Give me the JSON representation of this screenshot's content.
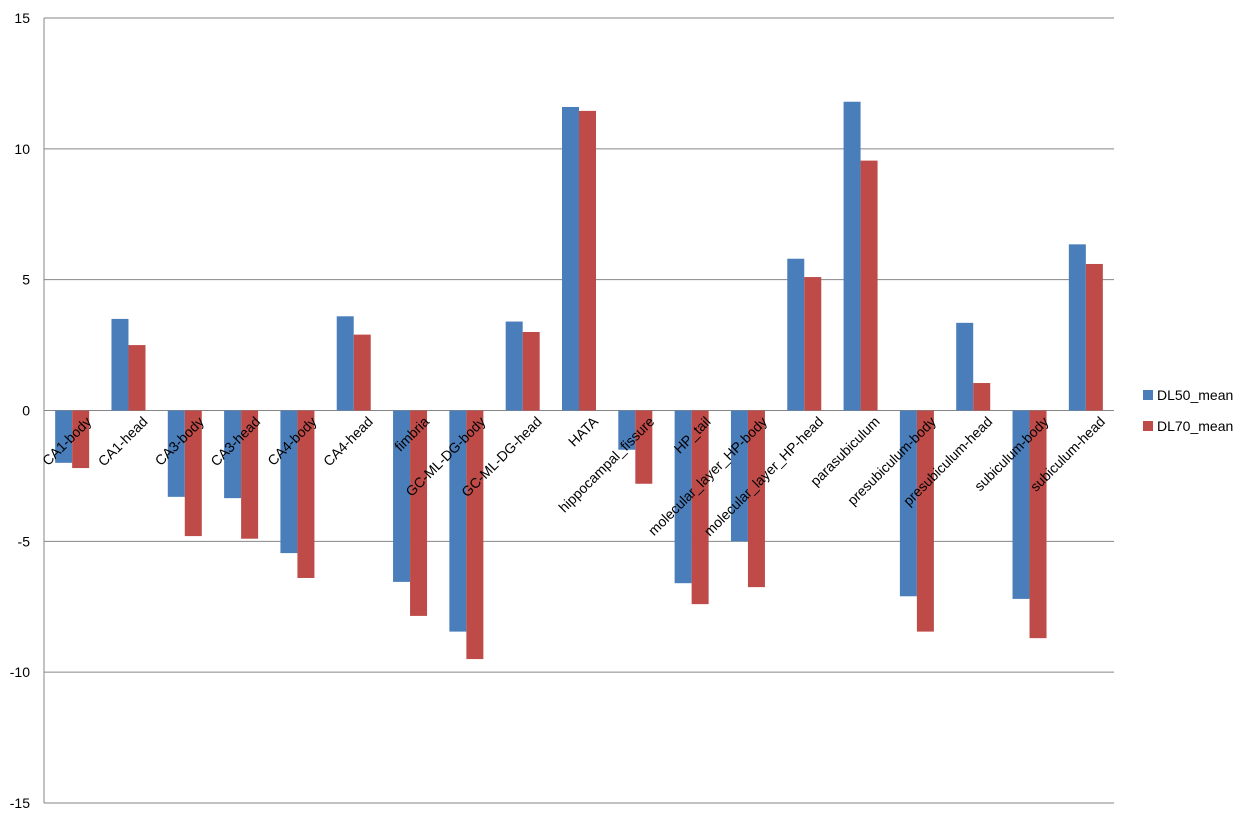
{
  "chart_data": {
    "type": "bar",
    "categories": [
      "CA1-body",
      "CA1-head",
      "CA3-body",
      "CA3-head",
      "CA4-body",
      "CA4-head",
      "fimbria",
      "GC-ML-DG-body",
      "GC-ML-DG-head",
      "HATA",
      "hippocampal_fissure",
      "HP_tail",
      "molecular_layer_HP-body",
      "molecular_layer_HP-head",
      "parasubiculum",
      "presubiculum-body",
      "presubiculum-head",
      "subiculum-body",
      "subiculum-head"
    ],
    "series": [
      {
        "name": "DL50_mean",
        "color": "#4a7ebb",
        "values": [
          -2.0,
          3.5,
          -3.3,
          -3.35,
          -5.45,
          3.6,
          -6.55,
          -8.45,
          3.4,
          11.6,
          -1.5,
          -6.6,
          -5.0,
          5.8,
          11.8,
          -7.1,
          3.35,
          -7.2,
          6.35
        ]
      },
      {
        "name": "DL70_mean",
        "color": "#be4b48",
        "values": [
          -2.2,
          2.5,
          -4.8,
          -4.9,
          -6.4,
          2.9,
          -7.85,
          -9.5,
          3.0,
          11.45,
          -2.8,
          -7.4,
          -6.75,
          5.1,
          9.55,
          -8.45,
          1.05,
          -8.7,
          5.6
        ]
      }
    ],
    "ylim": [
      -15,
      15
    ],
    "yticks": [
      -15,
      -10,
      -5,
      0,
      5,
      10,
      15
    ],
    "grid": true,
    "legend": "right"
  }
}
